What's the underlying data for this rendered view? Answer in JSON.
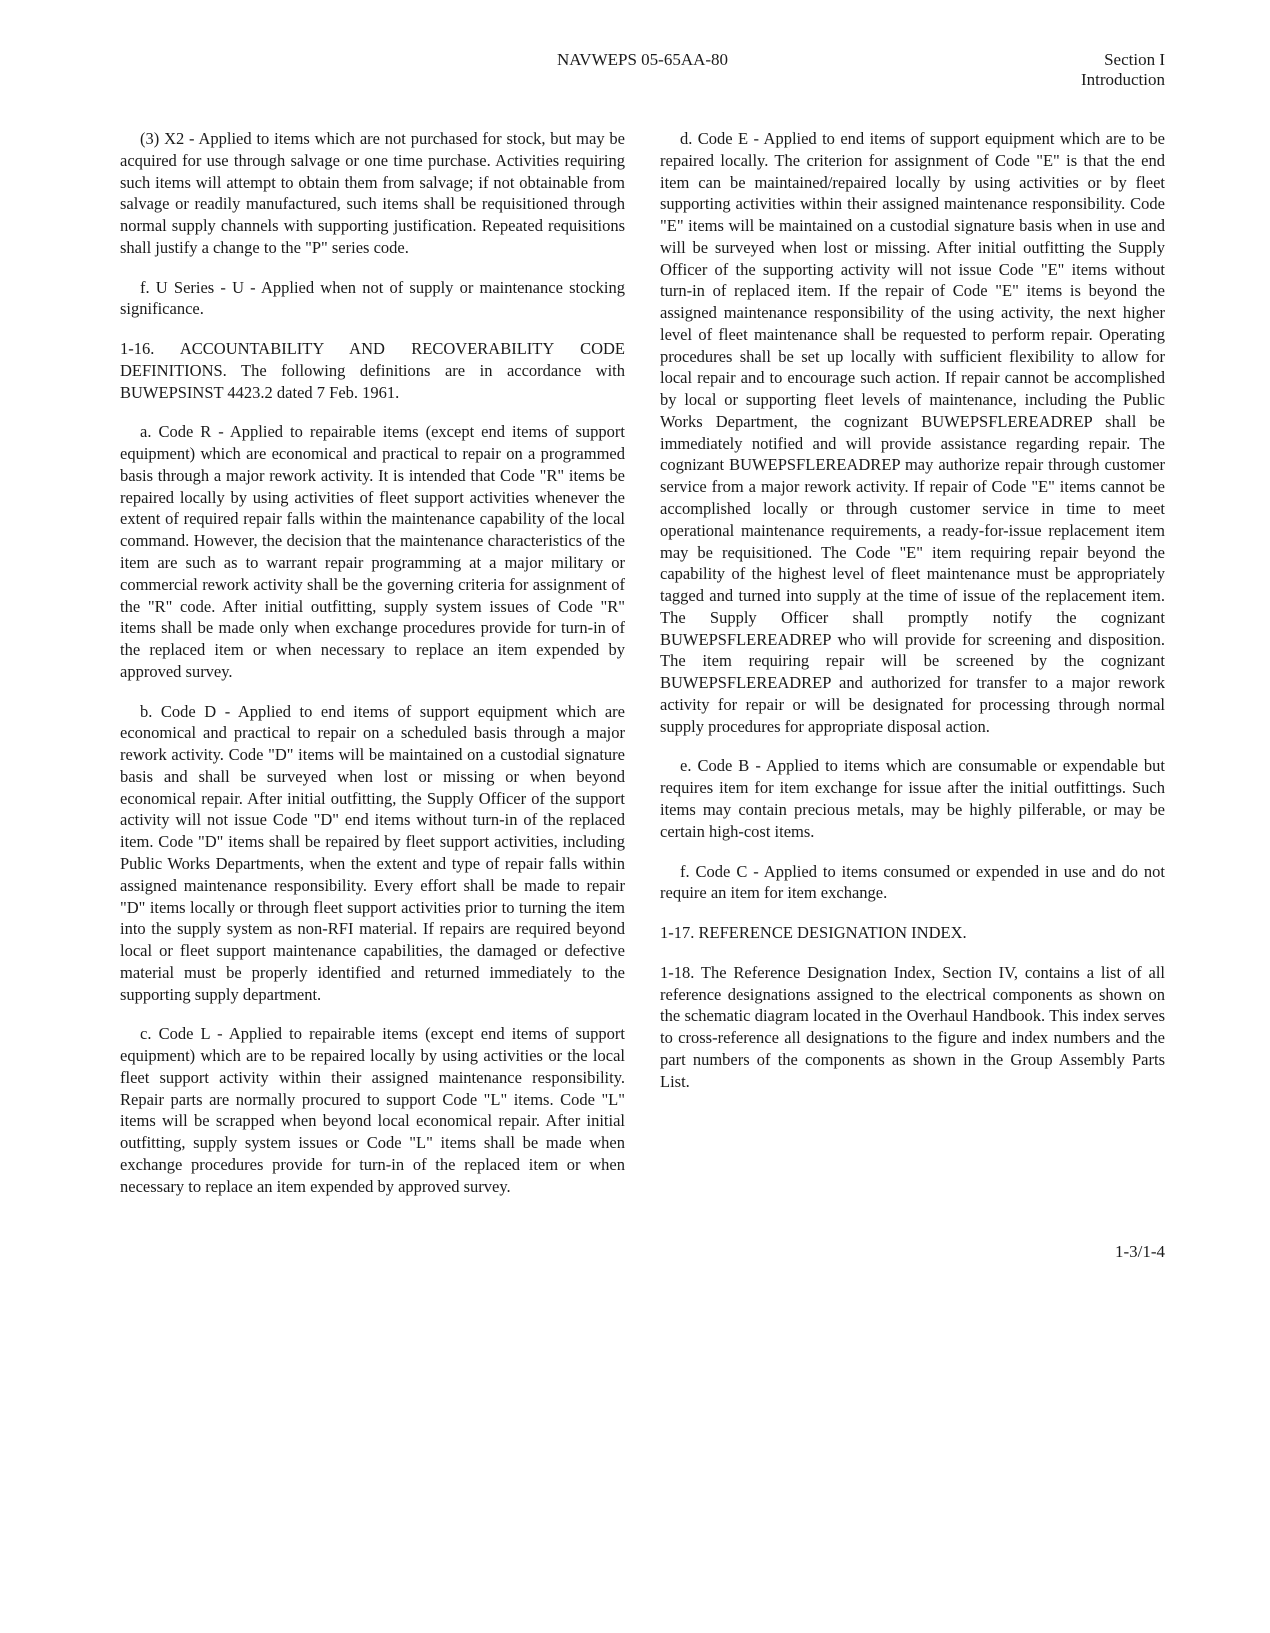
{
  "header": {
    "center": "NAVWEPS 05-65AA-80",
    "right_line1": "Section I",
    "right_line2": "Introduction"
  },
  "paragraphs": {
    "p1": "(3) X2 - Applied to items which are not purchased for stock, but may be acquired for use through salvage or one time purchase. Activities requiring such items will attempt to obtain them from salvage; if not obtainable from salvage or readily manufactured, such items shall be requisitioned through normal supply channels with supporting justification. Repeated requisitions shall justify a change to the \"P\" series code.",
    "p2": "f. U Series - U - Applied when not of supply or maintenance stocking significance.",
    "p3": "1-16. ACCOUNTABILITY AND RECOVERABILITY CODE DEFINITIONS. The following definitions are in accordance with BUWEPSINST 4423.2 dated 7 Feb. 1961.",
    "p4": "a. Code R - Applied to repairable items (except end items of support equipment) which are economical and practical to repair on a programmed basis through a major rework activity. It is intended that Code \"R\" items be repaired locally by using activities of fleet support activities whenever the extent of required repair falls within the maintenance capability of the local command. However, the decision that the maintenance characteristics of the item are such as to warrant repair programming at a major military or commercial rework activity shall be the governing criteria for assignment of the \"R\" code. After initial outfitting, supply system issues of Code \"R\" items shall be made only when exchange procedures provide for turn-in of the replaced item or when necessary to replace an item expended by approved survey.",
    "p5": "b. Code D - Applied to end items of support equipment which are economical and practical to repair on a scheduled basis through a major rework activity. Code \"D\" items will be maintained on a custodial signature basis and shall be surveyed when lost or missing or when beyond economical repair. After initial outfitting, the Supply Officer of the support activity will not issue Code \"D\" end items without turn-in of the replaced item. Code \"D\" items shall be repaired by fleet support activities, including Public Works Departments, when the extent and type of repair falls within assigned maintenance responsibility. Every effort shall be made to repair \"D\" items locally or through fleet support activities prior to turning the item into the supply system as non-RFI material. If repairs are required beyond local or fleet support maintenance capabilities, the damaged or defective material must be properly identified and returned immediately to the supporting supply department.",
    "p6": "c. Code L - Applied to repairable items (except end items of support equipment) which are to be repaired locally by using activities or the local fleet support activity within their assigned maintenance responsibility. Repair parts are normally procured to support Code \"L\" items. Code \"L\" items will be scrapped when beyond local economical repair. After initial outfitting, supply system issues or Code \"L\" items shall be made when exchange procedures provide for turn-in of the replaced item or when necessary to replace an item expended by approved survey.",
    "p7": "d. Code E - Applied to end items of support equipment which are to be repaired locally. The criterion for assignment of Code \"E\" is that the end item can be maintained/repaired locally by using activities or by fleet supporting activities within their assigned maintenance responsibility. Code \"E\" items will be maintained on a custodial signature basis when in use and will be surveyed when lost or missing. After initial outfitting the Supply Officer of the supporting activity will not issue Code \"E\" items without turn-in of replaced item. If the repair of Code \"E\" items is beyond the assigned maintenance responsibility of the using activity, the next higher level of fleet maintenance shall be requested to perform repair. Operating procedures shall be set up locally with sufficient flexibility to allow for local repair and to encourage such action. If repair cannot be accomplished by local or supporting fleet levels of maintenance, including the Public Works Department, the cognizant BUWEPSFLEREADREP shall be immediately notified and will provide assistance regarding repair. The cognizant BUWEPSFLEREADREP may authorize repair through customer service from a major rework activity. If repair of Code \"E\" items cannot be accomplished locally or through customer service in time to meet operational maintenance requirements, a ready-for-issue replacement item may be requisitioned. The Code \"E\" item requiring repair beyond the capability of the highest level of fleet maintenance must be appropriately tagged and turned into supply at the time of issue of the replacement item. The Supply Officer shall promptly notify the cognizant BUWEPSFLEREADREP who will provide for screening and disposition. The item requiring repair will be screened by the cognizant BUWEPSFLEREADREP and authorized for transfer to a major rework activity for repair or will be designated for processing through normal supply procedures for appropriate disposal action.",
    "p8": "e. Code B - Applied to items which are consumable or expendable but requires item for item exchange for issue after the initial outfittings. Such items may contain precious metals, may be highly pilferable, or may be certain high-cost items.",
    "p9": "f. Code C - Applied to items consumed or expended in use and do not require an item for item exchange.",
    "p10": "1-17. REFERENCE DESIGNATION INDEX.",
    "p11": "1-18. The Reference Designation Index, Section IV, contains a list of all reference designations assigned to the electrical components as shown on the schematic diagram located in the Overhaul Handbook. This index serves to cross-reference all designations to the figure and index numbers and the part numbers of the components as shown in the Group Assembly Parts List."
  },
  "page_number": "1-3/1-4"
}
